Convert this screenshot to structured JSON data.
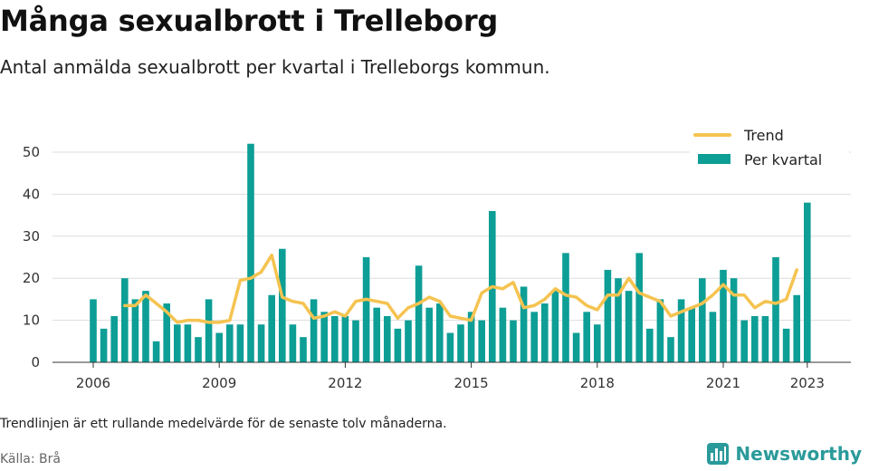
{
  "header": {
    "title": "Många sexualbrott i Trelleborg",
    "subtitle": "Antal anmälda sexualbrott per kvartal i Trelleborgs kommun."
  },
  "footer": {
    "note": "Trendlinjen är ett rullande medelvärde för de senaste tolv månaderna.",
    "source": "Källa: Brå",
    "brand": "Newsworthy",
    "brand_icon": "bar-chart-logo-icon"
  },
  "colors": {
    "bars": "#0d9e96",
    "trend": "#f5c350",
    "grid": "#dddddd",
    "brand": "#2b9a9a"
  },
  "chart_data": {
    "type": "bar",
    "title": "Många sexualbrott i Trelleborg",
    "subtitle": "Antal anmälda sexualbrott per kvartal i Trelleborgs kommun.",
    "ylim": [
      0,
      55
    ],
    "yticks": [
      0,
      10,
      20,
      30,
      40,
      50
    ],
    "xticks": [
      {
        "label": "2006",
        "period": "2006Q1"
      },
      {
        "label": "2009",
        "period": "2009Q1"
      },
      {
        "label": "2012",
        "period": "2012Q1"
      },
      {
        "label": "2015",
        "period": "2015Q1"
      },
      {
        "label": "2018",
        "period": "2018Q1"
      },
      {
        "label": "2021",
        "period": "2021Q1"
      },
      {
        "label": "2023",
        "period": "2023Q1"
      }
    ],
    "legend": {
      "position": "top-right",
      "items": [
        "Trend",
        "Per kvartal"
      ]
    },
    "categories": [
      "2006Q1",
      "2006Q2",
      "2006Q3",
      "2006Q4",
      "2007Q1",
      "2007Q2",
      "2007Q3",
      "2007Q4",
      "2008Q1",
      "2008Q2",
      "2008Q3",
      "2008Q4",
      "2009Q1",
      "2009Q2",
      "2009Q3",
      "2009Q4",
      "2010Q1",
      "2010Q2",
      "2010Q3",
      "2010Q4",
      "2011Q1",
      "2011Q2",
      "2011Q3",
      "2011Q4",
      "2012Q1",
      "2012Q2",
      "2012Q3",
      "2012Q4",
      "2013Q1",
      "2013Q2",
      "2013Q3",
      "2013Q4",
      "2014Q1",
      "2014Q2",
      "2014Q3",
      "2014Q4",
      "2015Q1",
      "2015Q2",
      "2015Q3",
      "2015Q4",
      "2016Q1",
      "2016Q2",
      "2016Q3",
      "2016Q4",
      "2017Q1",
      "2017Q2",
      "2017Q3",
      "2017Q4",
      "2018Q1",
      "2018Q2",
      "2018Q3",
      "2018Q4",
      "2019Q1",
      "2019Q2",
      "2019Q3",
      "2019Q4",
      "2020Q1",
      "2020Q2",
      "2020Q3",
      "2020Q4",
      "2021Q1",
      "2021Q2",
      "2021Q3",
      "2021Q4",
      "2022Q1",
      "2022Q2",
      "2022Q3",
      "2022Q4",
      "2023Q1"
    ],
    "series": [
      {
        "name": "Per kvartal",
        "kind": "bar",
        "values": [
          15,
          8,
          11,
          20,
          15,
          17,
          5,
          14,
          9,
          9,
          6,
          15,
          7,
          9,
          9,
          52,
          9,
          16,
          27,
          9,
          6,
          15,
          12,
          11,
          11,
          10,
          25,
          13,
          11,
          8,
          10,
          23,
          13,
          14,
          7,
          9,
          12,
          10,
          36,
          13,
          10,
          18,
          12,
          14,
          17,
          26,
          7,
          12,
          9,
          22,
          20,
          17,
          26,
          8,
          15,
          6,
          15,
          13,
          20,
          12,
          22,
          20,
          10,
          11,
          11,
          25,
          8,
          16,
          38
        ]
      },
      {
        "name": "Trend",
        "kind": "line",
        "values": [
          null,
          null,
          null,
          13.5,
          13.5,
          16,
          14,
          12,
          9.5,
          10,
          10,
          9.5,
          9.5,
          10,
          19.5,
          20,
          21.5,
          25.5,
          15.5,
          14.5,
          14,
          10.5,
          11,
          12,
          11,
          14.5,
          15,
          14.5,
          14,
          10.5,
          13,
          14,
          15.5,
          14.5,
          11,
          10.5,
          10,
          16.5,
          18,
          17.5,
          19,
          13,
          13.5,
          15,
          17.5,
          16,
          15.5,
          13.5,
          12.5,
          16,
          16,
          20,
          16.5,
          15.5,
          14.5,
          11,
          12,
          13,
          14,
          16,
          18.5,
          16,
          16,
          13,
          14.5,
          14,
          15,
          22,
          null
        ]
      }
    ]
  }
}
